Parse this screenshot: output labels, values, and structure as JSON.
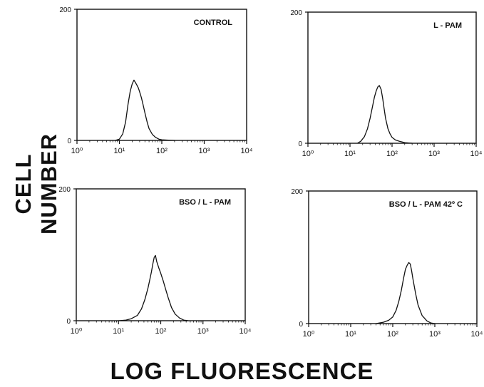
{
  "figure": {
    "ylabel": "CELL NUMBER",
    "xlabel": "LOG FLUORESCENCE"
  },
  "chart_data": [
    {
      "type": "area",
      "title": "CONTROL",
      "xscale": "log",
      "xlim": [
        1,
        10000
      ],
      "ylim": [
        0,
        200
      ],
      "yticks": [
        0,
        200
      ],
      "xtick_labels": [
        "10⁰",
        "10¹",
        "10²",
        "10³",
        "10⁴"
      ],
      "x": [
        8,
        10,
        12,
        14,
        16,
        18,
        20,
        22,
        24,
        26,
        28,
        30,
        33,
        36,
        40,
        45,
        50,
        60,
        70,
        85,
        100,
        130,
        200
      ],
      "values": [
        0,
        2,
        10,
        28,
        55,
        75,
        86,
        92,
        88,
        84,
        80,
        74,
        65,
        55,
        42,
        28,
        18,
        9,
        5,
        2,
        1,
        0.5,
        0
      ]
    },
    {
      "type": "area",
      "title": "L - PAM",
      "xscale": "log",
      "xlim": [
        1,
        10000
      ],
      "ylim": [
        0,
        200
      ],
      "yticks": [
        0,
        200
      ],
      "xtick_labels": [
        "10⁰",
        "10¹",
        "10²",
        "10³",
        "10⁴"
      ],
      "x": [
        15,
        18,
        22,
        26,
        30,
        34,
        38,
        42,
        46,
        50,
        55,
        60,
        65,
        70,
        80,
        90,
        100,
        120,
        150,
        200,
        300
      ],
      "values": [
        0,
        3,
        10,
        22,
        38,
        55,
        70,
        80,
        86,
        88,
        82,
        68,
        52,
        38,
        22,
        14,
        9,
        5,
        3,
        1,
        0
      ]
    },
    {
      "type": "area",
      "title": "BSO / L - PAM",
      "xscale": "log",
      "xlim": [
        1,
        10000
      ],
      "ylim": [
        0,
        200
      ],
      "yticks": [
        0,
        200
      ],
      "xtick_labels": [
        "10⁰",
        "10¹",
        "10²",
        "10³",
        "10⁴"
      ],
      "x": [
        10,
        15,
        20,
        28,
        35,
        42,
        50,
        55,
        60,
        65,
        70,
        75,
        80,
        90,
        100,
        115,
        130,
        150,
        180,
        220,
        280,
        350,
        450
      ],
      "values": [
        0,
        1,
        3,
        8,
        18,
        32,
        50,
        62,
        74,
        86,
        96,
        99,
        90,
        80,
        72,
        60,
        48,
        35,
        20,
        10,
        4,
        1,
        0
      ]
    },
    {
      "type": "area",
      "title": "BSO / L - PAM 42º C",
      "xscale": "log",
      "xlim": [
        1,
        10000
      ],
      "ylim": [
        0,
        200
      ],
      "yticks": [
        0,
        200
      ],
      "xtick_labels": [
        "10⁰",
        "10¹",
        "10²",
        "10³",
        "10⁴"
      ],
      "x": [
        40,
        60,
        80,
        100,
        120,
        140,
        160,
        180,
        200,
        220,
        240,
        260,
        280,
        300,
        350,
        400,
        500,
        650,
        800,
        1000
      ],
      "values": [
        0,
        2,
        5,
        10,
        20,
        34,
        50,
        68,
        82,
        88,
        92,
        90,
        80,
        68,
        45,
        28,
        12,
        4,
        1,
        0
      ]
    }
  ]
}
